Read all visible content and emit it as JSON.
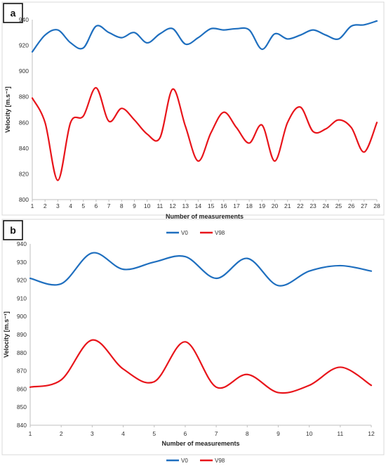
{
  "chart_data": [
    {
      "panel_label": "a",
      "type": "line",
      "xlabel": "Number of measurements",
      "ylabel": "Velocity [m.s⁻¹]",
      "x": [
        1,
        2,
        3,
        4,
        5,
        6,
        7,
        8,
        9,
        10,
        11,
        12,
        13,
        14,
        15,
        16,
        17,
        18,
        19,
        20,
        21,
        22,
        23,
        24,
        25,
        26,
        27,
        28
      ],
      "ylim": [
        800,
        940
      ],
      "yticks": [
        800,
        820,
        840,
        860,
        880,
        900,
        920,
        940
      ],
      "grid": false,
      "legend_position": "bottom",
      "series": [
        {
          "name": "V0",
          "color": "#1f6fbf",
          "values": [
            915,
            928,
            932,
            922,
            918,
            935,
            930,
            926,
            930,
            922,
            929,
            933,
            921,
            926,
            933,
            932,
            933,
            932,
            917,
            929,
            925,
            928,
            932,
            928,
            925,
            935,
            936,
            939
          ]
        },
        {
          "name": "V98",
          "color": "#e8151b",
          "values": [
            879,
            860,
            815,
            860,
            865,
            887,
            861,
            871,
            862,
            851,
            848,
            886,
            857,
            830,
            852,
            868,
            856,
            844,
            858,
            830,
            860,
            872,
            853,
            855,
            862,
            856,
            837,
            860
          ]
        }
      ]
    },
    {
      "panel_label": "b",
      "type": "line",
      "xlabel": "Number of measurements",
      "ylabel": "Velocity [m.s⁻¹]",
      "x": [
        1,
        2,
        3,
        4,
        5,
        6,
        7,
        8,
        9,
        10,
        11,
        12
      ],
      "ylim": [
        840,
        940
      ],
      "yticks": [
        840,
        850,
        860,
        870,
        880,
        890,
        900,
        910,
        920,
        930,
        940
      ],
      "grid": false,
      "legend_position": "bottom",
      "series": [
        {
          "name": "V0",
          "color": "#1f6fbf",
          "values": [
            921,
            918,
            935,
            926,
            930,
            933,
            921,
            932,
            917,
            925,
            928,
            925
          ]
        },
        {
          "name": "V98",
          "color": "#e8151b",
          "values": [
            861,
            865,
            887,
            871,
            864,
            886,
            861,
            868,
            858,
            862,
            872,
            862
          ]
        }
      ]
    }
  ]
}
